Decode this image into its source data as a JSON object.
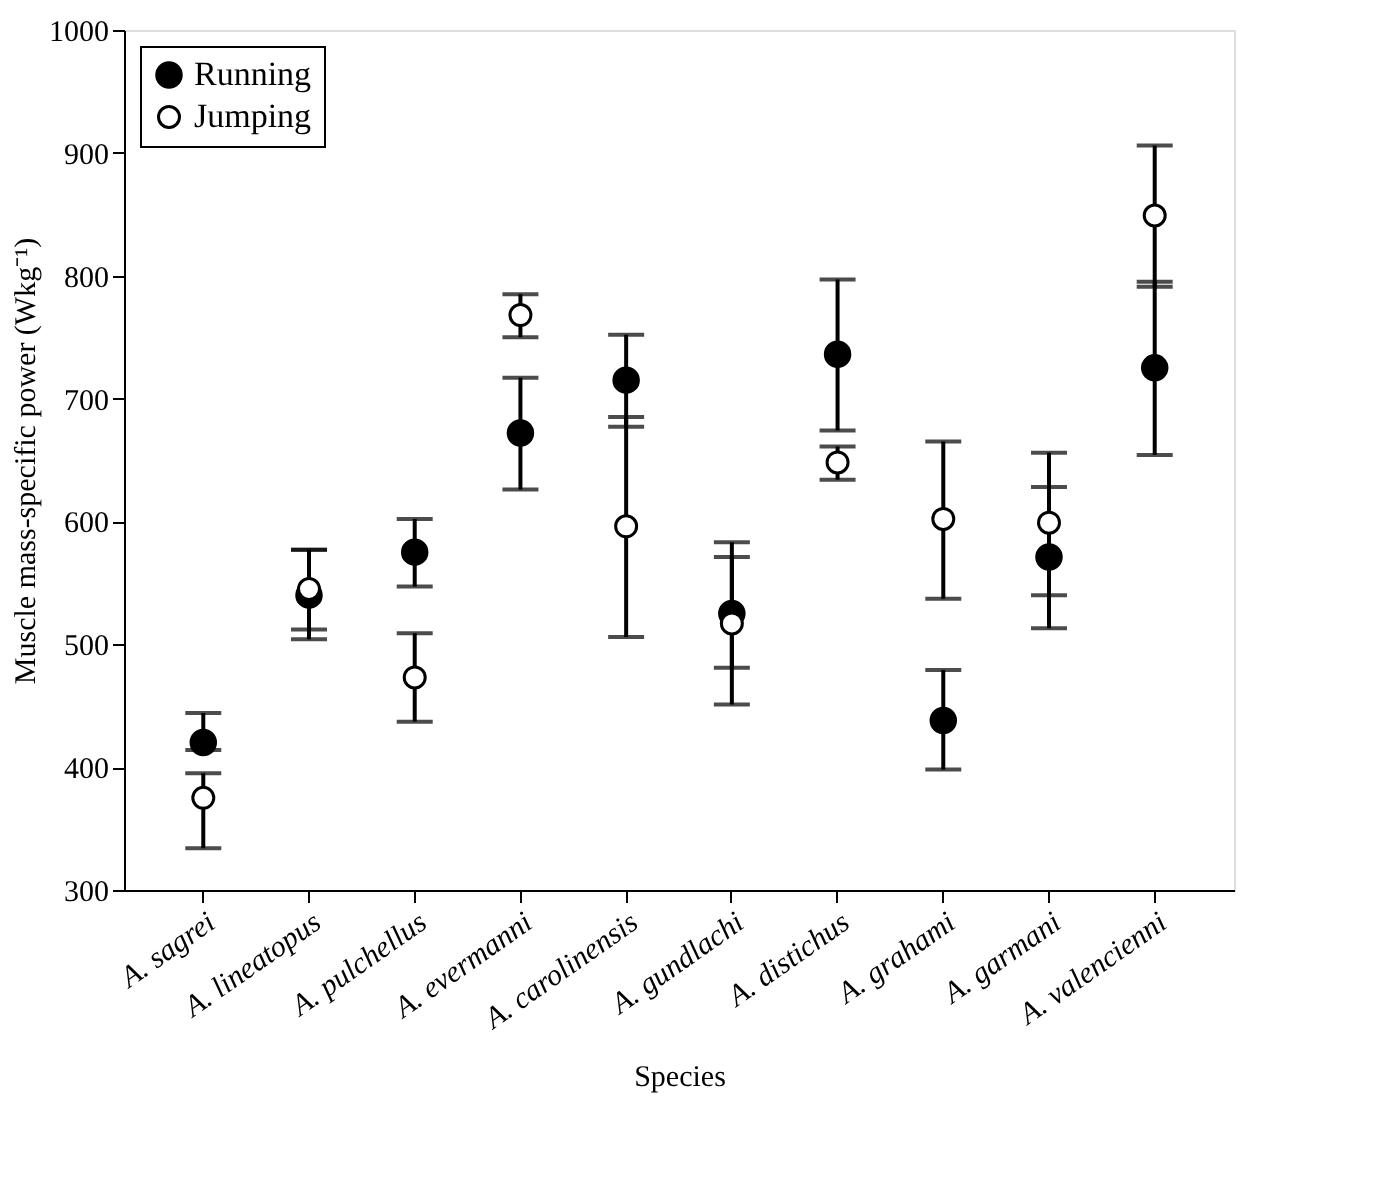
{
  "chart_data": {
    "type": "scatter",
    "xlabel": "Species",
    "ylabel": "Muscle mass-specific power (Wkg⁻¹)",
    "categories": [
      "A. sagrei",
      "A. lineatopus",
      "A. pulchellus",
      "A. evermanni",
      "A. carolinensis",
      "A. gundlachi",
      "A. distichus",
      "A. grahami",
      "A. garmani",
      "A. valencienni"
    ],
    "series": [
      {
        "name": "Running",
        "color": "#000000",
        "values": [
          420,
          540,
          575,
          672,
          715,
          525,
          736,
          438,
          571,
          725
        ],
        "errors": [
          [
            414,
            444
          ],
          [
            504,
            577
          ],
          [
            547,
            602
          ],
          [
            626,
            717
          ],
          [
            677,
            752
          ],
          [
            481,
            583
          ],
          [
            674,
            797
          ],
          [
            398,
            479
          ],
          [
            540,
            628
          ],
          [
            654,
            795
          ]
        ]
      },
      {
        "name": "Jumping",
        "color": "#000000",
        "values": [
          375,
          545,
          473,
          768,
          596,
          517,
          648,
          602,
          599,
          849
        ],
        "errors": [
          [
            334,
            395
          ],
          [
            512,
            577
          ],
          [
            437,
            509
          ],
          [
            750,
            785
          ],
          [
            506,
            685
          ],
          [
            451,
            571
          ],
          [
            634,
            661
          ],
          [
            537,
            665
          ],
          [
            513,
            656
          ],
          [
            791,
            906
          ]
        ]
      }
    ],
    "ylim": [
      300,
      1000
    ],
    "yticks": [
      300,
      400,
      500,
      600,
      700,
      800,
      900,
      1000
    ],
    "grid": false,
    "legend": "top left",
    "marker": "circle"
  }
}
